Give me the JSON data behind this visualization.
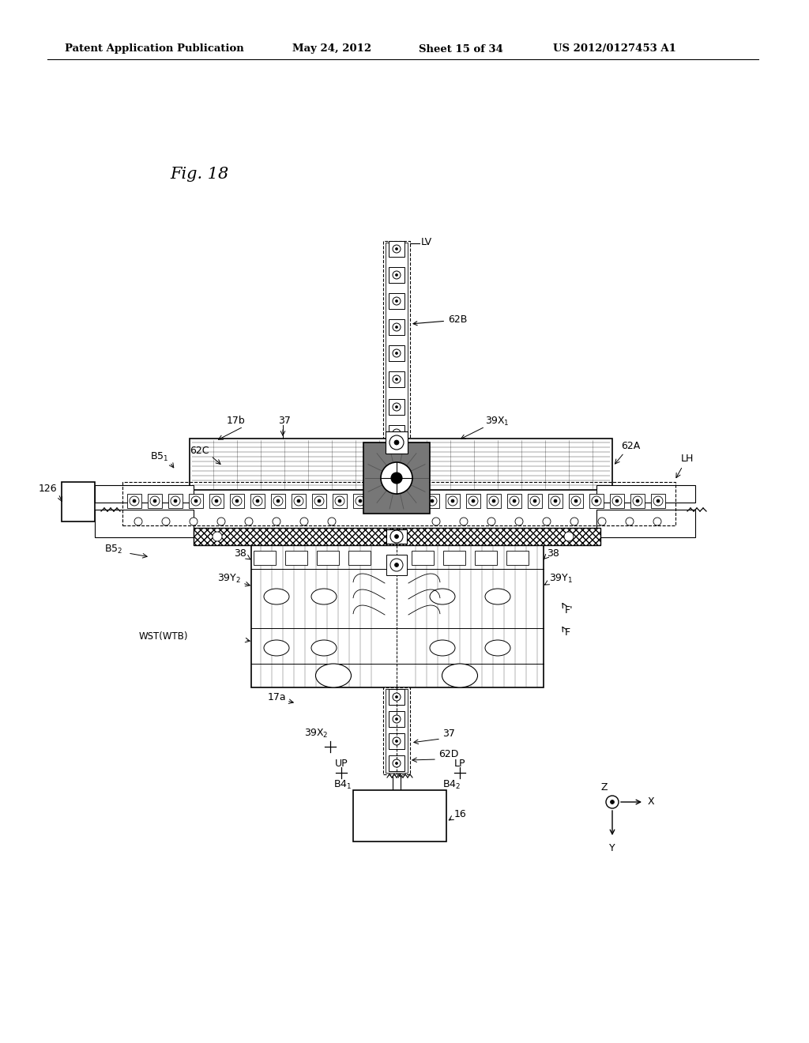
{
  "bg_color": "#ffffff",
  "header_text": "Patent Application Publication",
  "header_date": "May 24, 2012",
  "header_sheet": "Sheet 15 of 34",
  "header_patent": "US 2012/0127453 A1",
  "fig_label": "Fig. 18"
}
